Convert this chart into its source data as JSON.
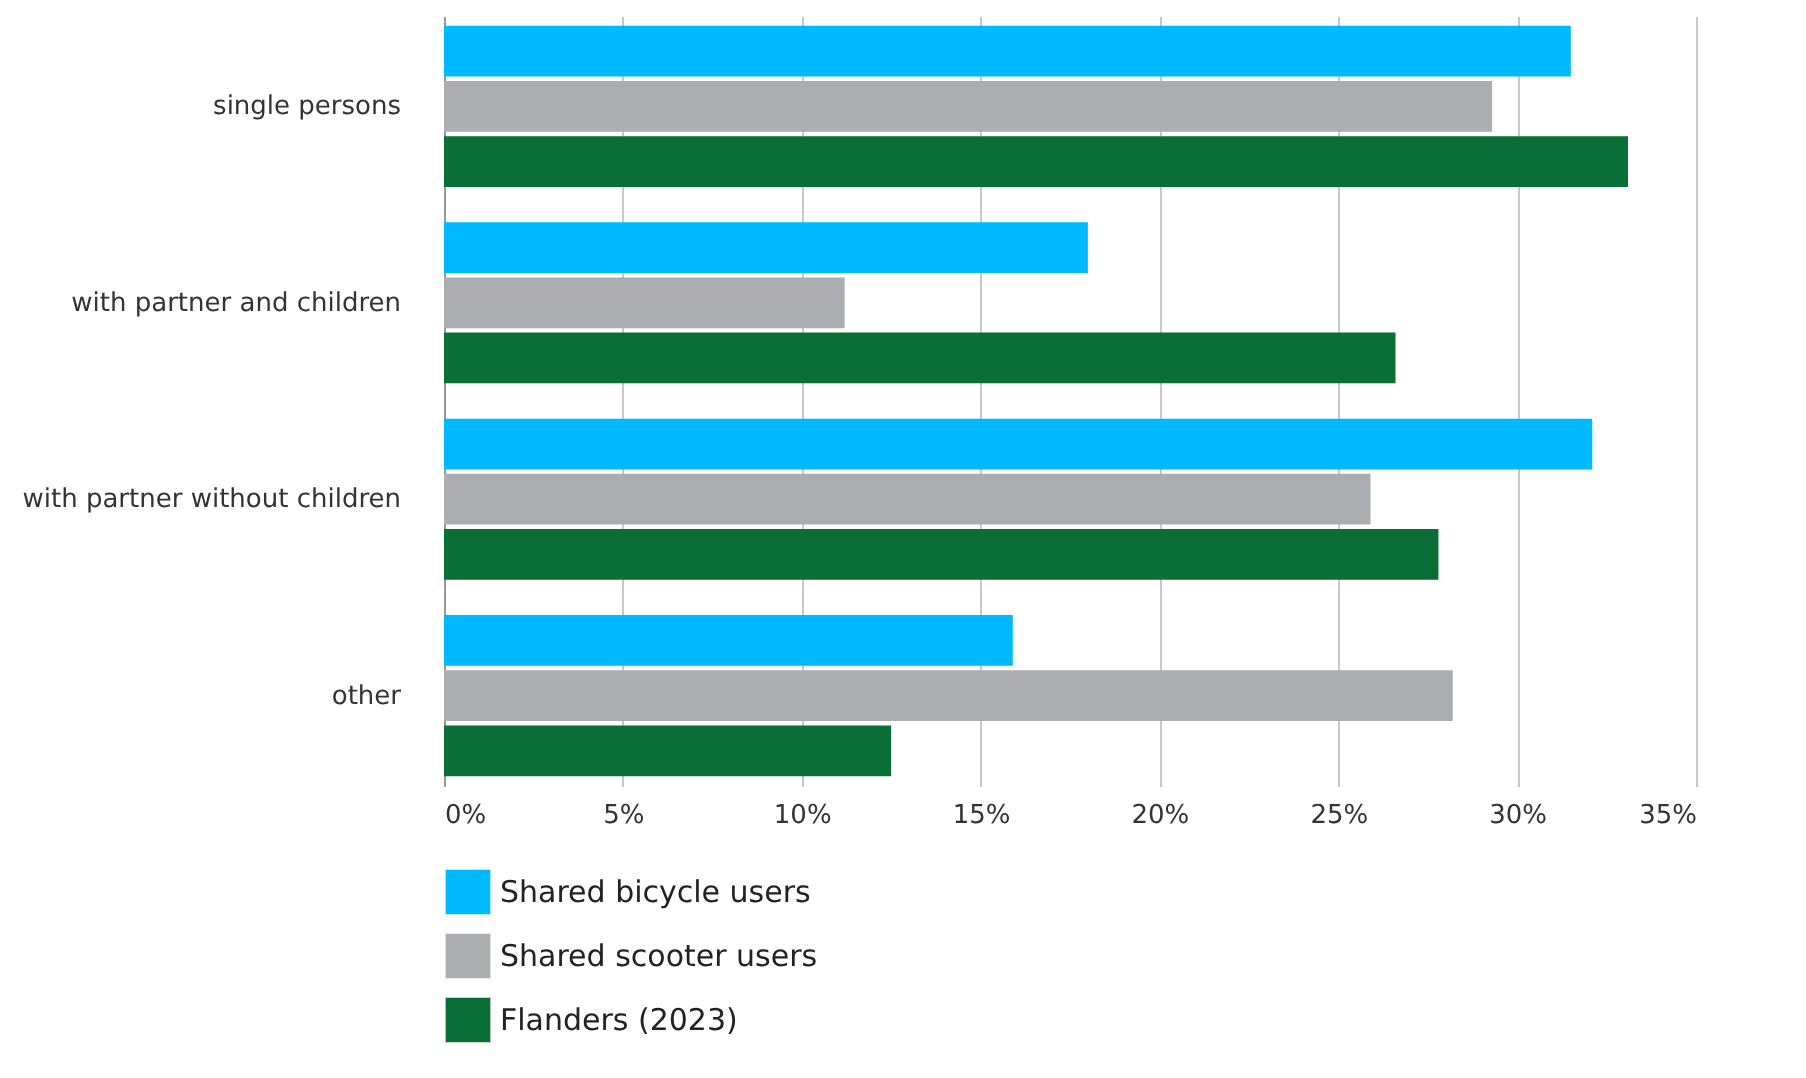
{
  "chart_data": {
    "type": "bar",
    "orientation": "horizontal",
    "categories": [
      "single persons",
      "with partner and children",
      "with partner without children",
      "other"
    ],
    "series": [
      {
        "name": "Shared bicycle users",
        "color": "#00b9ff",
        "values": [
          31.5,
          18.0,
          32.1,
          15.9
        ]
      },
      {
        "name": "Shared scooter users",
        "color": "#abadb0",
        "values": [
          29.3,
          11.2,
          25.9,
          28.2
        ]
      },
      {
        "name": "Flanders (2023)",
        "color": "#0a6e37",
        "values": [
          33.1,
          26.6,
          27.8,
          12.5
        ]
      }
    ],
    "xlim": [
      0,
      35
    ],
    "xticks": [
      {
        "value": 0,
        "label": "0%"
      },
      {
        "value": 5,
        "label": "5%"
      },
      {
        "value": 10,
        "label": "10%"
      },
      {
        "value": 15,
        "label": "15%"
      },
      {
        "value": 20,
        "label": "20%"
      },
      {
        "value": 25,
        "label": "25%"
      },
      {
        "value": 30,
        "label": "30%"
      },
      {
        "value": 35,
        "label": "35%"
      }
    ],
    "grid": "x",
    "legend": "bottom"
  }
}
